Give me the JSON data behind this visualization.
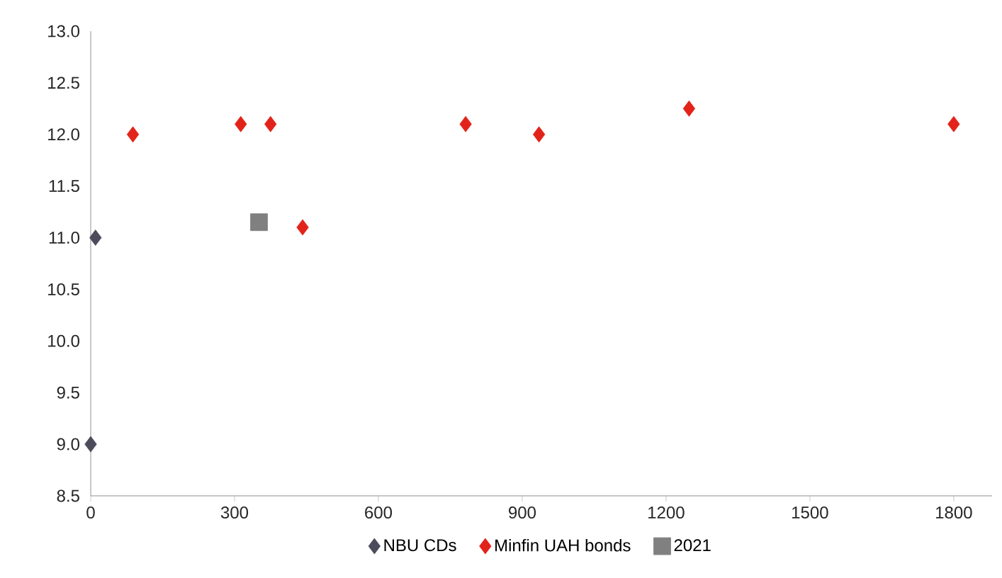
{
  "chart_data": {
    "type": "scatter",
    "xlim": [
      0,
      1880
    ],
    "ylim": [
      8.5,
      13.0
    ],
    "xticks": [
      0,
      300,
      600,
      900,
      1200,
      1500,
      1800
    ],
    "yticks": [
      {
        "value": 8.5,
        "label": "8.5"
      },
      {
        "value": 9.0,
        "label": "9.0"
      },
      {
        "value": 9.5,
        "label": "9.5"
      },
      {
        "value": 10.0,
        "label": "10.0"
      },
      {
        "value": 10.5,
        "label": "10.5"
      },
      {
        "value": 11.0,
        "label": "11.0"
      },
      {
        "value": 11.5,
        "label": "11.5"
      },
      {
        "value": 12.0,
        "label": "12.0"
      },
      {
        "value": 12.5,
        "label": "12.5"
      },
      {
        "value": 13.0,
        "label": "13.0"
      }
    ],
    "grid": false,
    "legend": "bottom",
    "series": [
      {
        "name": "NBU CDs",
        "color": "#4b4b5c",
        "marker": "diamond",
        "x": [
          0,
          10
        ],
        "values": [
          9.0,
          11.0
        ]
      },
      {
        "name": "Minfin UAH bonds",
        "color": "#e2231a",
        "marker": "diamond",
        "x": [
          88,
          313,
          375,
          442,
          782,
          935,
          1248,
          1800
        ],
        "values": [
          12.0,
          12.1,
          12.1,
          11.1,
          12.1,
          12.0,
          12.25,
          12.1
        ]
      },
      {
        "name": "2021",
        "color": "#808080",
        "marker": "square",
        "x": [
          351
        ],
        "values": [
          11.15
        ]
      }
    ]
  }
}
